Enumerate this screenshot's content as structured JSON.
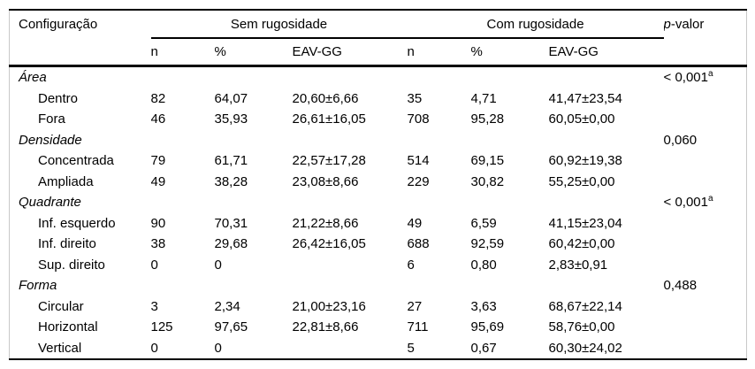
{
  "colors": {
    "background": "#ffffff",
    "text": "#000000",
    "rule": "#000000",
    "side_border": "#c9c9c9"
  },
  "header": {
    "config_label": "Configuração",
    "group1": "Sem rugosidade",
    "group2": "Com rugosidade",
    "p_italic": "p",
    "p_rest": "-valor",
    "sub": [
      "n",
      "%",
      "EAV-GG",
      "n",
      "%",
      "EAV-GG"
    ]
  },
  "rows": [
    {
      "type": "section",
      "label": "Área",
      "p": "< 0,001",
      "p_sup": "a"
    },
    {
      "type": "item",
      "label": "Dentro",
      "c": [
        "82",
        "64,07",
        "20,60±6,66",
        "35",
        "4,71",
        "41,47±23,54"
      ]
    },
    {
      "type": "item",
      "label": "Fora",
      "c": [
        "46",
        "35,93",
        "26,61±16,05",
        "708",
        "95,28",
        "60,05±0,00"
      ]
    },
    {
      "type": "section",
      "label": "Densidade",
      "p": "0,060"
    },
    {
      "type": "item",
      "label": "Concentrada",
      "c": [
        "79",
        "61,71",
        "22,57±17,28",
        "514",
        "69,15",
        "60,92±19,38"
      ]
    },
    {
      "type": "item",
      "label": "Ampliada",
      "c": [
        "49",
        "38,28",
        "23,08±8,66",
        "229",
        "30,82",
        "55,25±0,00"
      ]
    },
    {
      "type": "section",
      "label": "Quadrante",
      "p": "< 0,001",
      "p_sup": "a"
    },
    {
      "type": "item",
      "label": "Inf. esquerdo",
      "c": [
        "90",
        "70,31",
        "21,22±8,66",
        "49",
        "6,59",
        "41,15±23,04"
      ]
    },
    {
      "type": "item",
      "label": "Inf. direito",
      "c": [
        "38",
        "29,68",
        "26,42±16,05",
        "688",
        "92,59",
        "60,42±0,00"
      ]
    },
    {
      "type": "item",
      "label": "Sup. direito",
      "c": [
        "0",
        "0",
        "",
        "6",
        "0,80",
        "2,83±0,91"
      ]
    },
    {
      "type": "section",
      "label": "Forma",
      "p": "0,488"
    },
    {
      "type": "item",
      "label": "Circular",
      "c": [
        "3",
        "2,34",
        "21,00±23,16",
        "27",
        "3,63",
        "68,67±22,14"
      ]
    },
    {
      "type": "item",
      "label": "Horizontal",
      "c": [
        "125",
        "97,65",
        "22,81±8,66",
        "711",
        "95,69",
        "58,76±0,00"
      ]
    },
    {
      "type": "item",
      "label": "Vertical",
      "c": [
        "0",
        "0",
        "",
        "5",
        "0,67",
        "60,30±24,02"
      ]
    }
  ]
}
